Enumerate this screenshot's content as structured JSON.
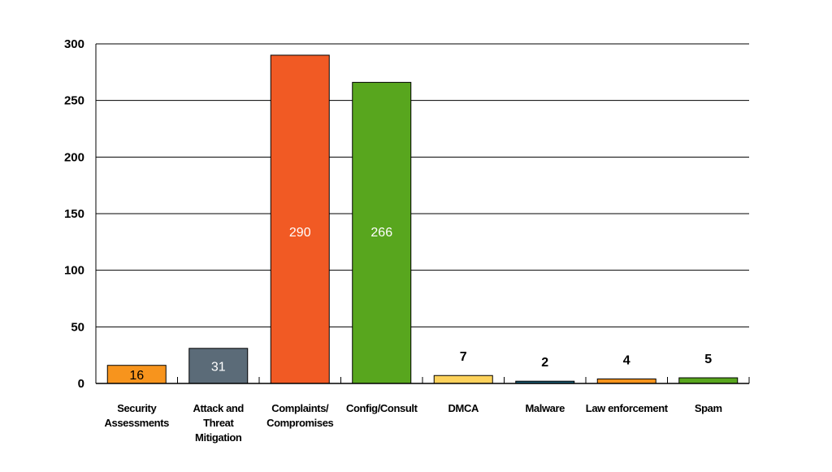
{
  "chart_data": {
    "type": "bar",
    "title": "",
    "xlabel": "",
    "ylabel": "",
    "ylim": [
      0,
      300
    ],
    "yticks": [
      0,
      50,
      100,
      150,
      200,
      250,
      300
    ],
    "grid": true,
    "categories": [
      [
        "Security",
        "Assessments"
      ],
      [
        "Attack and",
        "Threat",
        "Mitigation"
      ],
      [
        "Complaints/",
        "Compromises"
      ],
      [
        "Config/Consult"
      ],
      [
        "DMCA"
      ],
      [
        "Malware"
      ],
      [
        "Law enforcement"
      ],
      [
        "Spam"
      ]
    ],
    "values": [
      16,
      31,
      290,
      266,
      7,
      2,
      4,
      5
    ],
    "data_labels": [
      "16",
      "31",
      "290",
      "266",
      "7",
      "2",
      "4",
      "5"
    ],
    "colors": [
      "#f7941d",
      "#5b6b78",
      "#f15a24",
      "#58a61e",
      "#fdd25c",
      "#1b5e78",
      "#f7941d",
      "#58a61e"
    ],
    "label_position": [
      "inside",
      "inside",
      "inside",
      "inside",
      "above",
      "above",
      "above",
      "above"
    ],
    "label_colors": [
      "#000000",
      "#ffffff",
      "#ffffff",
      "#ffffff",
      "#000000",
      "#000000",
      "#000000",
      "#000000"
    ]
  }
}
